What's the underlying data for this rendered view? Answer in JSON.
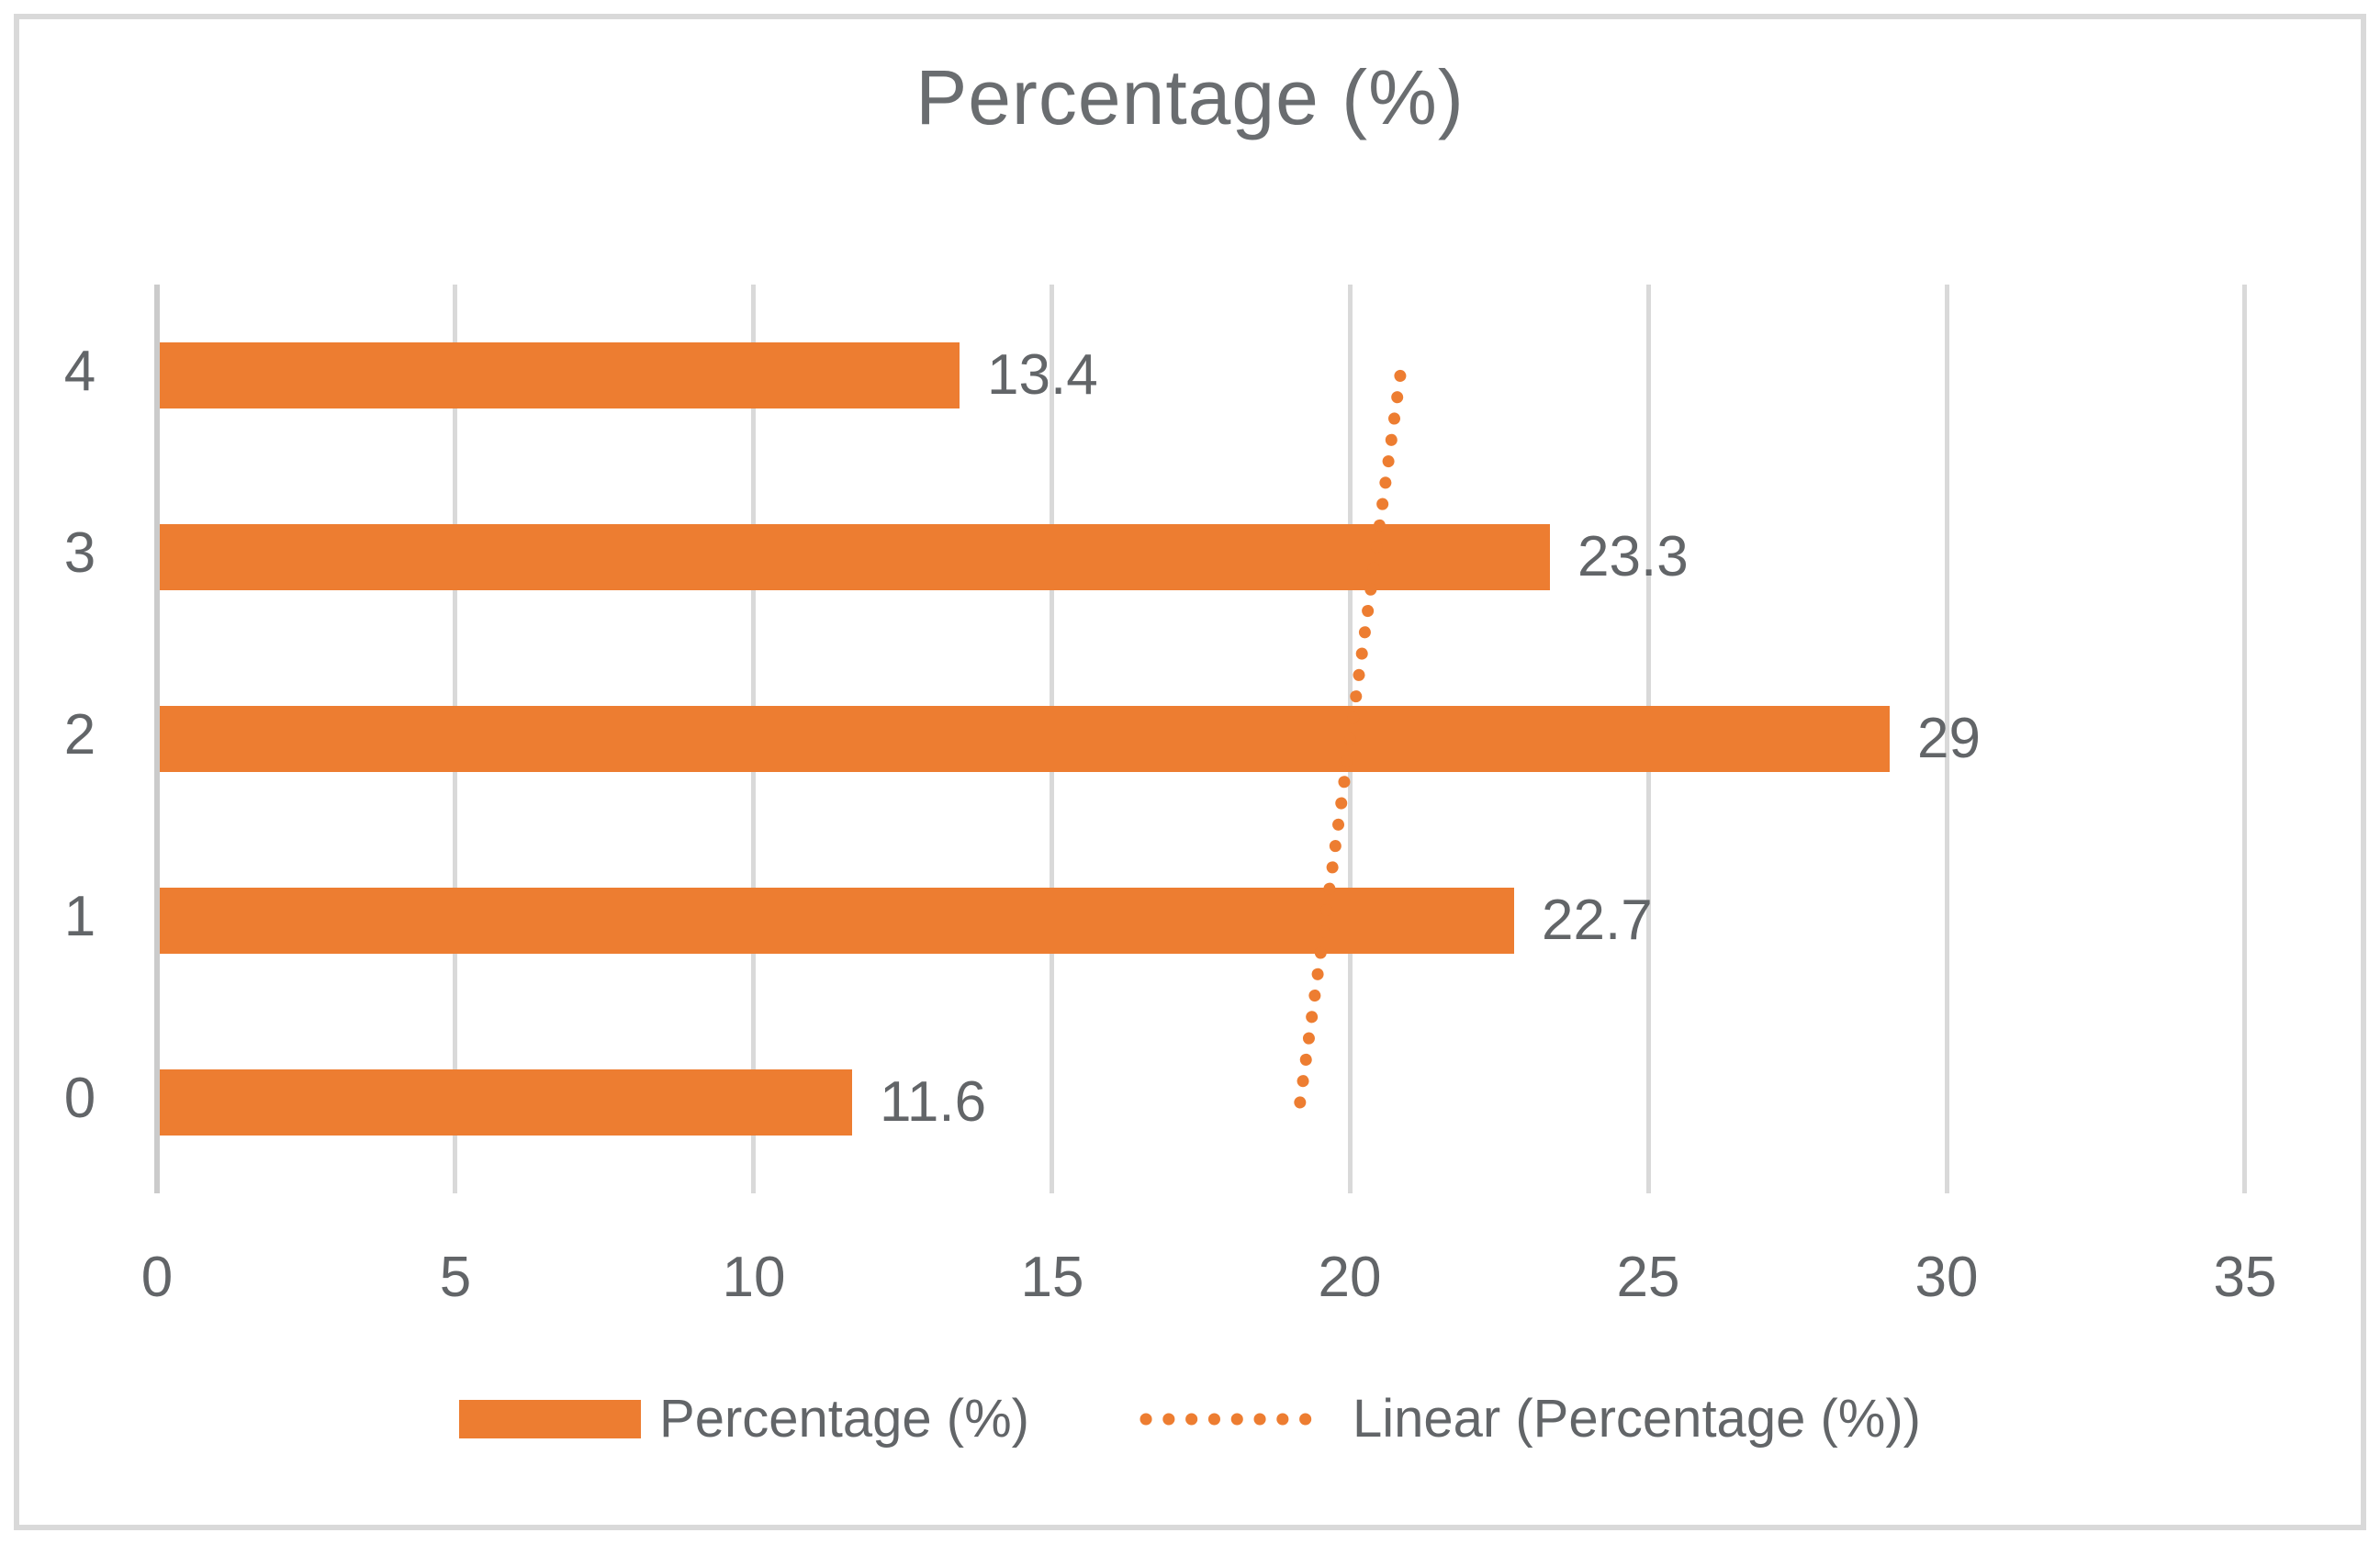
{
  "title": "Percentage (%)",
  "legend": {
    "series_label": "Percentage (%)",
    "trend_label": "Linear (Percentage (%))"
  },
  "colors": {
    "bar": "#ED7D31",
    "trend": "#ED7D31",
    "grid": "#D9D9D9",
    "axis_line": "#CBCBCB",
    "text": "#626568",
    "border": "#D9D9D9"
  },
  "chart_data": {
    "type": "bar",
    "orientation": "horizontal",
    "title": "Percentage (%)",
    "categories_top_to_bottom": [
      "4",
      "3",
      "2",
      "1",
      "0"
    ],
    "values_top_to_bottom": [
      13.4,
      23.3,
      29,
      22.7,
      11.6
    ],
    "data_labels_top_to_bottom": [
      "13.4",
      "23.3",
      "29",
      "22.7",
      "11.6"
    ],
    "x_ticks": [
      "0",
      "5",
      "10",
      "15",
      "20",
      "25",
      "30",
      "35"
    ],
    "xlim": [
      0,
      35
    ],
    "grid": true,
    "legend_position": "bottom",
    "legend_entries": [
      "Percentage (%)",
      "Linear (Percentage (%))"
    ],
    "trendline": {
      "type": "linear",
      "label": "Linear (Percentage (%))",
      "style": "dotted",
      "value_at_bottom_category": 19.16,
      "value_at_top_category": 20.84
    }
  }
}
